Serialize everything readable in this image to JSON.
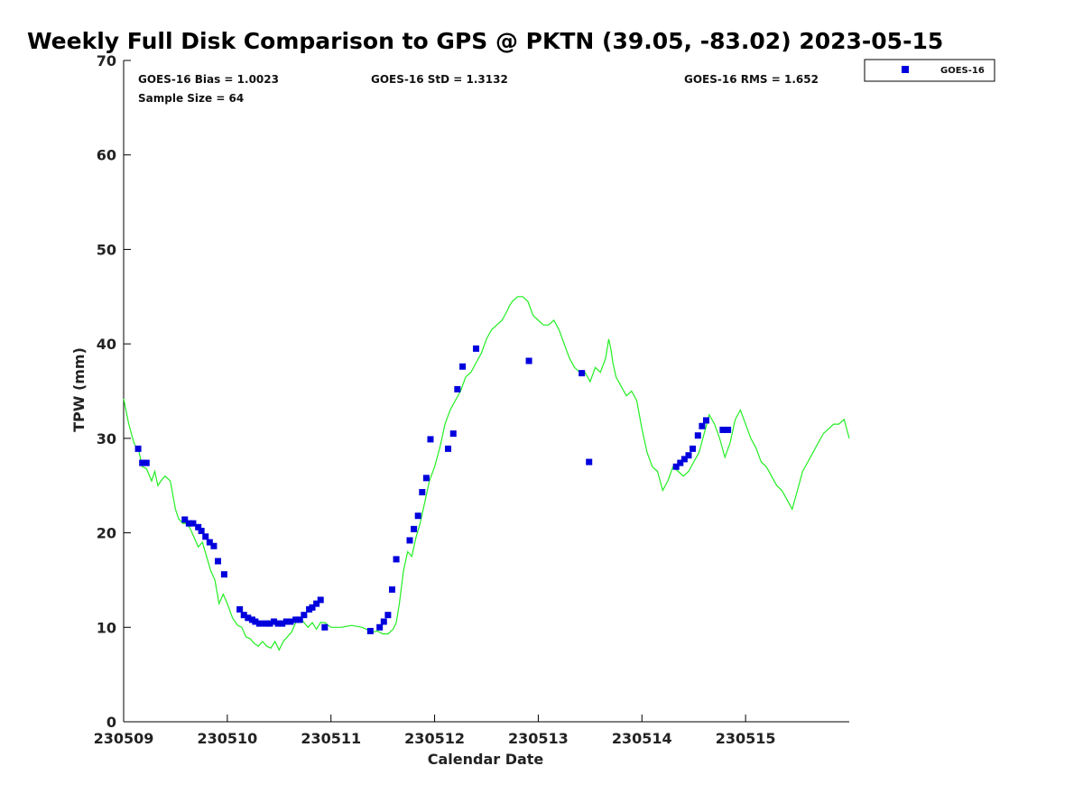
{
  "chart_data": {
    "type": "scatter",
    "title": "Weekly Full Disk Comparison to GPS @ PKTN (39.05, -83.02) 2023-05-15",
    "xlabel": "Calendar Date",
    "ylabel": "TPW (mm)",
    "ylim": [
      0,
      70
    ],
    "xlim": [
      0,
      7
    ],
    "yticks": [
      0,
      10,
      20,
      30,
      40,
      50,
      60,
      70
    ],
    "xticks": [
      {
        "x": 0,
        "label": "230509"
      },
      {
        "x": 1,
        "label": "230510"
      },
      {
        "x": 2,
        "label": "230511"
      },
      {
        "x": 3,
        "label": "230512"
      },
      {
        "x": 4,
        "label": "230513"
      },
      {
        "x": 5,
        "label": "230514"
      },
      {
        "x": 6,
        "label": "230515"
      }
    ],
    "stats": {
      "bias": "GOES-16 Bias = 1.0023",
      "std": "GOES-16 StD = 1.3132",
      "rms": "GOES-16 RMS = 1.652",
      "sample": "Sample Size = 64"
    },
    "legend": {
      "position": "top-right",
      "entries": [
        "GOES-16"
      ]
    },
    "grid": false,
    "colors": {
      "goes": "#0000dd",
      "gps": "#22ee22"
    },
    "series": [
      {
        "name": "GOES-16",
        "kind": "scatter",
        "x": [
          0.14,
          0.18,
          0.22,
          0.59,
          0.63,
          0.67,
          0.72,
          0.75,
          0.79,
          0.83,
          0.87,
          0.91,
          0.97,
          1.12,
          1.16,
          1.2,
          1.24,
          1.27,
          1.31,
          1.37,
          1.41,
          1.45,
          1.49,
          1.53,
          1.57,
          1.61,
          1.66,
          1.7,
          1.74,
          1.79,
          1.82,
          1.86,
          1.9,
          1.94,
          2.38,
          2.47,
          2.51,
          2.55,
          2.59,
          2.63,
          2.76,
          2.8,
          2.84,
          2.88,
          2.92,
          2.96,
          3.13,
          3.18,
          3.22,
          3.27,
          3.4,
          3.91,
          4.42,
          4.49,
          5.33,
          5.37,
          5.41,
          5.45,
          5.49,
          5.54,
          5.58,
          5.62,
          5.78,
          5.83
        ],
        "y": [
          28.9,
          27.4,
          27.4,
          21.4,
          21.0,
          21.0,
          20.6,
          20.2,
          19.6,
          19.0,
          18.6,
          17.0,
          15.6,
          11.9,
          11.3,
          11.0,
          10.8,
          10.6,
          10.4,
          10.4,
          10.4,
          10.6,
          10.4,
          10.4,
          10.6,
          10.6,
          10.8,
          10.8,
          11.3,
          11.9,
          12.1,
          12.5,
          12.9,
          10.0,
          9.6,
          10.0,
          10.6,
          11.3,
          14.0,
          17.2,
          19.2,
          20.4,
          21.8,
          24.3,
          25.8,
          29.9,
          28.9,
          30.5,
          35.2,
          37.6,
          39.5,
          38.2,
          36.9,
          27.5,
          27.0,
          27.4,
          27.8,
          28.2,
          28.9,
          30.3,
          31.3,
          31.9,
          30.9,
          30.9
        ]
      },
      {
        "kind": "line",
        "x": [
          0.0,
          0.05,
          0.1,
          0.15,
          0.18,
          0.22,
          0.27,
          0.3,
          0.33,
          0.36,
          0.4,
          0.45,
          0.5,
          0.53,
          0.57,
          0.6,
          0.64,
          0.68,
          0.72,
          0.76,
          0.8,
          0.84,
          0.88,
          0.92,
          0.96,
          1.0,
          1.05,
          1.1,
          1.14,
          1.18,
          1.22,
          1.26,
          1.3,
          1.34,
          1.38,
          1.42,
          1.46,
          1.5,
          1.54,
          1.58,
          1.62,
          1.66,
          1.7,
          1.74,
          1.78,
          1.82,
          1.86,
          1.9,
          1.94,
          2.0,
          2.1,
          2.2,
          2.3,
          2.4,
          2.45,
          2.5,
          2.55,
          2.6,
          2.63,
          2.66,
          2.7,
          2.74,
          2.78,
          2.82,
          2.86,
          2.9,
          2.95,
          3.0,
          3.05,
          3.1,
          3.15,
          3.2,
          3.25,
          3.3,
          3.35,
          3.4,
          3.45,
          3.5,
          3.55,
          3.6,
          3.65,
          3.7,
          3.72,
          3.75,
          3.8,
          3.85,
          3.9,
          3.95,
          4.0,
          4.05,
          4.1,
          4.15,
          4.2,
          4.25,
          4.3,
          4.35,
          4.4,
          4.45,
          4.5,
          4.55,
          4.6,
          4.65,
          4.68,
          4.7,
          4.72,
          4.75,
          4.8,
          4.85,
          4.9,
          4.95,
          5.0,
          5.05,
          5.1,
          5.15,
          5.2,
          5.25,
          5.3,
          5.35,
          5.4,
          5.45,
          5.5,
          5.55,
          5.6,
          5.65,
          5.7,
          5.75,
          5.8,
          5.85,
          5.9,
          5.95,
          6.0,
          6.05,
          6.1,
          6.15,
          6.2,
          6.25,
          6.3,
          6.35,
          6.4,
          6.45,
          6.5,
          6.55,
          6.6,
          6.65,
          6.7,
          6.75,
          6.8,
          6.85,
          6.9,
          6.95,
          7.0
        ],
        "y": [
          34.2,
          31.5,
          29.5,
          28.5,
          27.0,
          26.8,
          25.5,
          26.5,
          25.0,
          25.5,
          26.0,
          25.5,
          22.5,
          21.5,
          21.0,
          21.0,
          20.5,
          19.5,
          18.5,
          19.0,
          17.5,
          16.0,
          15.0,
          12.5,
          13.5,
          12.5,
          11.0,
          10.2,
          10.0,
          9.0,
          8.8,
          8.3,
          8.0,
          8.5,
          8.0,
          7.8,
          8.5,
          7.6,
          8.5,
          9.0,
          9.5,
          10.5,
          11.0,
          10.5,
          10.0,
          10.5,
          9.8,
          10.5,
          10.5,
          10.0,
          10.0,
          10.2,
          10.0,
          9.5,
          9.6,
          9.3,
          9.3,
          9.8,
          10.5,
          12.5,
          16.0,
          18.0,
          17.5,
          19.5,
          21.0,
          23.0,
          25.5,
          27.0,
          29.0,
          31.5,
          33.0,
          34.0,
          35.0,
          36.5,
          37.0,
          38.0,
          39.0,
          40.5,
          41.5,
          42.0,
          42.5,
          43.5,
          44.0,
          44.5,
          45.0,
          45.0,
          44.5,
          43.0,
          42.5,
          42.0,
          42.0,
          42.5,
          41.5,
          40.0,
          38.5,
          37.5,
          37.0,
          37.0,
          36.0,
          37.5,
          37.0,
          38.5,
          40.5,
          39.5,
          38.0,
          36.5,
          35.5,
          34.5,
          35.0,
          34.0,
          31.0,
          28.5,
          27.0,
          26.5,
          24.5,
          25.5,
          27.0,
          26.5,
          26.0,
          26.5,
          27.5,
          28.5,
          30.5,
          32.5,
          31.5,
          30.0,
          28.0,
          29.5,
          32.0,
          33.0,
          31.5,
          30.0,
          29.0,
          27.5,
          27.0,
          26.0,
          25.0,
          24.5,
          23.5,
          22.5,
          24.5,
          26.5,
          27.5,
          28.5,
          29.5,
          30.5,
          31.0,
          31.5,
          31.5,
          32.0,
          30.0
        ]
      }
    ]
  }
}
